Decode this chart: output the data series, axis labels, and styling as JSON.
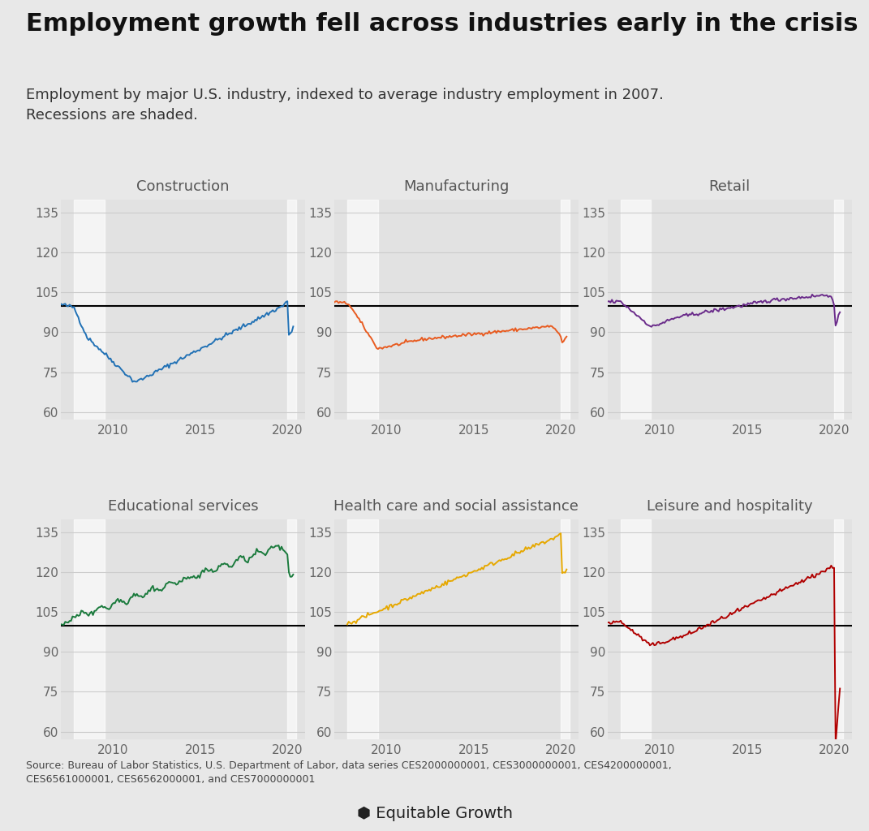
{
  "title": "Employment growth fell across industries early in the crisis",
  "subtitle": "Employment by major U.S. industry, indexed to average industry employment in 2007.\nRecessions are shaded.",
  "source_text": "Source: Bureau of Labor Statistics, U.S. Department of Labor, data series CES2000000001, CES3000000001, CES4200000001,\nCES6561000001, CES6562000001, and CES7000000001",
  "background_color": "#e8e8e8",
  "panel_bg": "#e2e2e2",
  "recession_color": "#d0d0d0",
  "reference_line_y": 100,
  "ylim": [
    57,
    140
  ],
  "yticks": [
    60,
    75,
    90,
    105,
    120,
    135
  ],
  "recession_bands": [
    [
      2007.75,
      2009.5
    ]
  ],
  "covid_band": [
    2020.0,
    2020.5
  ],
  "panels": [
    {
      "title": "Construction",
      "color": "#2171b5",
      "idx": 0
    },
    {
      "title": "Manufacturing",
      "color": "#e85b20",
      "idx": 1
    },
    {
      "title": "Retail",
      "color": "#6a2b8a",
      "idx": 2
    },
    {
      "title": "Educational services",
      "color": "#1a7a3c",
      "idx": 3
    },
    {
      "title": "Health care and social assistance",
      "color": "#e6a800",
      "idx": 4
    },
    {
      "title": "Leisure and hospitality",
      "color": "#b00000",
      "idx": 5
    }
  ],
  "xticks": [
    2010,
    2015,
    2020
  ],
  "title_fontsize": 22,
  "subtitle_fontsize": 13,
  "panel_title_fontsize": 13,
  "tick_fontsize": 11
}
